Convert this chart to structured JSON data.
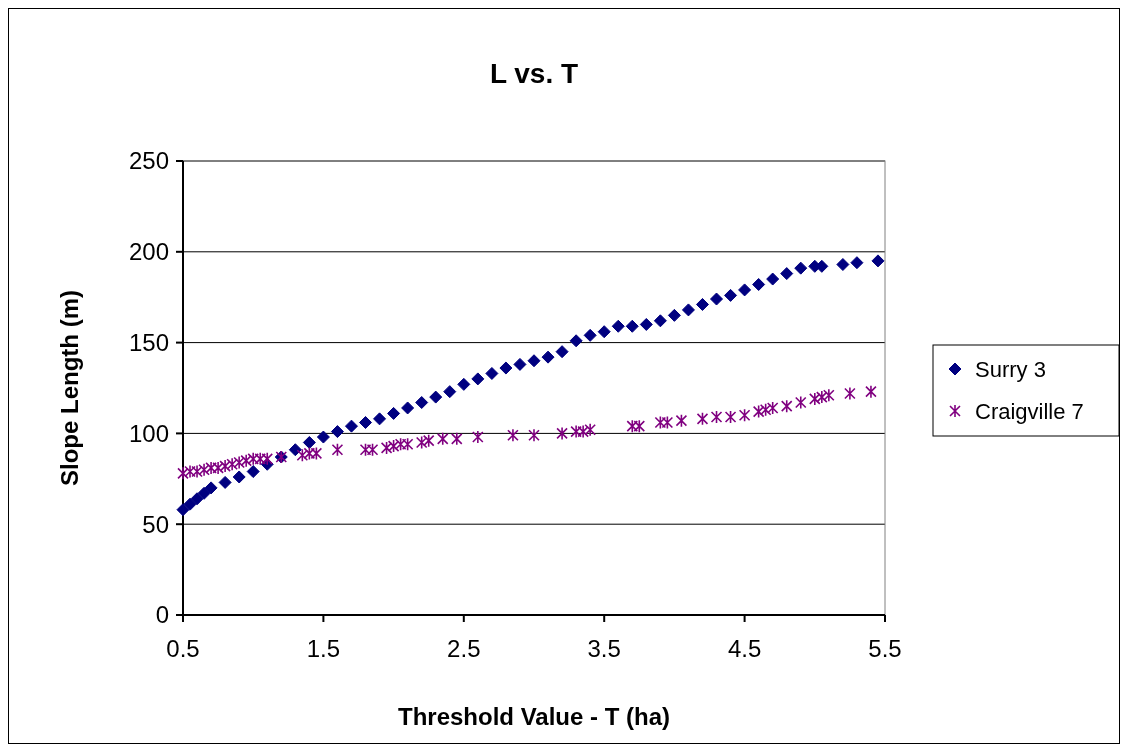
{
  "chart_data": {
    "type": "scatter",
    "title": "L vs. T",
    "xlabel": "Threshold Value - T (ha)",
    "ylabel": "Slope Length (m)",
    "xlim": [
      0.5,
      5.5
    ],
    "xticks": [
      0.5,
      1.5,
      2.5,
      3.5,
      4.5,
      5.5
    ],
    "ylim": [
      0,
      250
    ],
    "yticks": [
      0,
      50,
      100,
      150,
      200,
      250
    ],
    "grid": "y",
    "legend": "right",
    "series": [
      {
        "name": "Surry 3",
        "color": "#000080",
        "marker": "diamond",
        "x": [
          0.5,
          0.55,
          0.6,
          0.65,
          0.7,
          0.8,
          0.9,
          1.0,
          1.1,
          1.2,
          1.3,
          1.4,
          1.5,
          1.6,
          1.7,
          1.8,
          1.9,
          2.0,
          2.1,
          2.2,
          2.3,
          2.4,
          2.5,
          2.6,
          2.7,
          2.8,
          2.9,
          3.0,
          3.1,
          3.2,
          3.3,
          3.4,
          3.5,
          3.6,
          3.7,
          3.8,
          3.9,
          4.0,
          4.1,
          4.2,
          4.3,
          4.4,
          4.5,
          4.6,
          4.7,
          4.8,
          4.9,
          5.0,
          5.05,
          5.2,
          5.3,
          5.45
        ],
        "values": [
          58,
          61,
          64,
          67,
          70,
          73,
          76,
          79,
          83,
          87,
          91,
          95,
          98,
          101,
          104,
          106,
          108,
          111,
          114,
          117,
          120,
          123,
          127,
          130,
          133,
          136,
          138,
          140,
          142,
          145,
          151,
          154,
          156,
          159,
          159,
          160,
          162,
          165,
          168,
          171,
          174,
          176,
          179,
          182,
          185,
          188,
          191,
          192,
          192,
          193,
          194,
          195
        ]
      },
      {
        "name": "Craigville 7",
        "color": "#800080",
        "marker": "cross",
        "x": [
          0.5,
          0.55,
          0.6,
          0.65,
          0.7,
          0.75,
          0.8,
          0.85,
          0.9,
          0.95,
          1.0,
          1.05,
          1.1,
          1.2,
          1.35,
          1.4,
          1.45,
          1.6,
          1.8,
          1.85,
          1.95,
          2.0,
          2.05,
          2.1,
          2.2,
          2.25,
          2.35,
          2.45,
          2.6,
          2.85,
          3.0,
          3.2,
          3.3,
          3.35,
          3.4,
          3.7,
          3.75,
          3.9,
          3.95,
          4.05,
          4.2,
          4.3,
          4.4,
          4.5,
          4.6,
          4.65,
          4.7,
          4.8,
          4.9,
          5.0,
          5.05,
          5.1,
          5.25,
          5.4
        ],
        "values": [
          78,
          79,
          79,
          80,
          81,
          81,
          82,
          83,
          84,
          85,
          86,
          86,
          86,
          87,
          88,
          89,
          89,
          91,
          91,
          91,
          92,
          93,
          94,
          94,
          95,
          96,
          97,
          97,
          98,
          99,
          99,
          100,
          101,
          101,
          102,
          104,
          104,
          106,
          106,
          107,
          108,
          109,
          109,
          110,
          112,
          113,
          114,
          115,
          117,
          119,
          120,
          121,
          122,
          123
        ]
      }
    ]
  }
}
